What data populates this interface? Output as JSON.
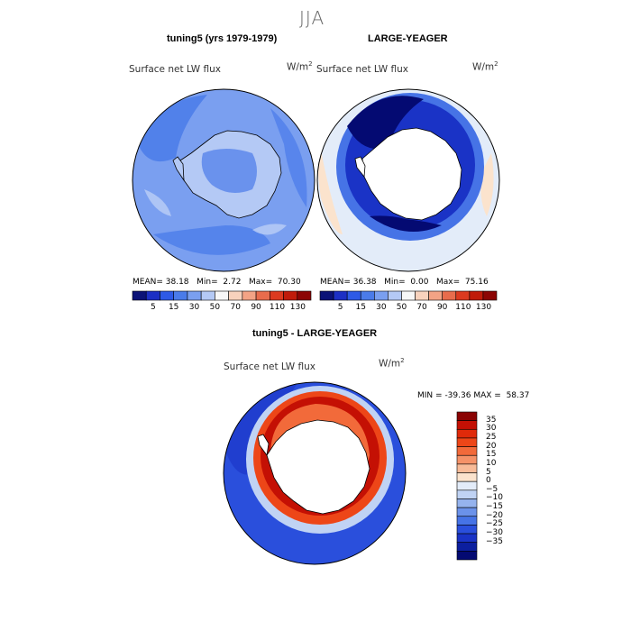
{
  "season": "JJA",
  "panels": {
    "model": {
      "title": "tuning5 (yrs 1979-1979)",
      "variable": "Surface net LW flux",
      "units_base": "W/m",
      "units_sup": "2",
      "stats": {
        "mean_label": "MEAN=",
        "mean": "38.18",
        "min_label": "Min=",
        "min": "2.72",
        "max_label": "Max=",
        "max": "70.30"
      }
    },
    "obs": {
      "title": "LARGE-YEAGER",
      "variable": "Surface net LW flux",
      "units_base": "W/m",
      "units_sup": "2",
      "stats": {
        "mean_label": "MEAN=",
        "mean": "36.38",
        "min_label": "Min=",
        "min": "0.00",
        "max_label": "Max=",
        "max": "75.16"
      }
    },
    "diff": {
      "title": "tuning5 - LARGE-YEAGER",
      "variable": "Surface net LW flux",
      "units_base": "W/m",
      "units_sup": "2",
      "stats": {
        "min_label": "MIN =",
        "min": "-39.36",
        "max_label": "MAX =",
        "max": "58.37"
      }
    }
  },
  "colorbars": {
    "top_ticks": [
      "5",
      "15",
      "30",
      "50",
      "70",
      "90",
      "110",
      "130"
    ],
    "top_colors": [
      "#0b1277",
      "#1c2fc4",
      "#2e5ae6",
      "#4a7be9",
      "#7a9ff0",
      "#b4c9f5",
      "#f7f7f7",
      "#f8d2bd",
      "#f3a385",
      "#e86c4c",
      "#dc3a1f",
      "#c01b0a",
      "#8c0504"
    ],
    "diff_ticks": [
      "35",
      "30",
      "25",
      "20",
      "15",
      "10",
      "5",
      "0",
      "−5",
      "−10",
      "−15",
      "−20",
      "−25",
      "−30",
      "−35"
    ],
    "diff_colors": [
      "#8a0303",
      "#c41004",
      "#e02a0a",
      "#ed4618",
      "#f26a3a",
      "#f59268",
      "#f8bb98",
      "#fbe3cd",
      "#e3ecf9",
      "#c0d3f4",
      "#95b3ee",
      "#6b92ea",
      "#4673e6",
      "#2a4fdc",
      "#1a33c6",
      "#0c1f9f",
      "#040a72"
    ]
  },
  "chart_data": [
    {
      "type": "heatmap",
      "title": "tuning5 (yrs 1979-1979)",
      "variable": "Surface net LW flux",
      "units": "W/m2",
      "projection": "south polar stereographic",
      "mean": 38.18,
      "min": 2.72,
      "max": 70.3,
      "contour_levels": [
        5,
        15,
        30,
        50,
        70,
        90,
        110,
        130
      ]
    },
    {
      "type": "heatmap",
      "title": "LARGE-YEAGER",
      "variable": "Surface net LW flux",
      "units": "W/m2",
      "projection": "south polar stereographic",
      "mean": 36.38,
      "min": 0.0,
      "max": 75.16,
      "contour_levels": [
        5,
        15,
        30,
        50,
        70,
        90,
        110,
        130
      ]
    },
    {
      "type": "heatmap",
      "title": "tuning5 - LARGE-YEAGER",
      "variable": "Surface net LW flux",
      "units": "W/m2",
      "projection": "south polar stereographic",
      "min": -39.36,
      "max": 58.37,
      "contour_levels": [
        -35,
        -30,
        -25,
        -20,
        -15,
        -10,
        -5,
        0,
        5,
        10,
        15,
        20,
        25,
        30,
        35
      ]
    }
  ]
}
